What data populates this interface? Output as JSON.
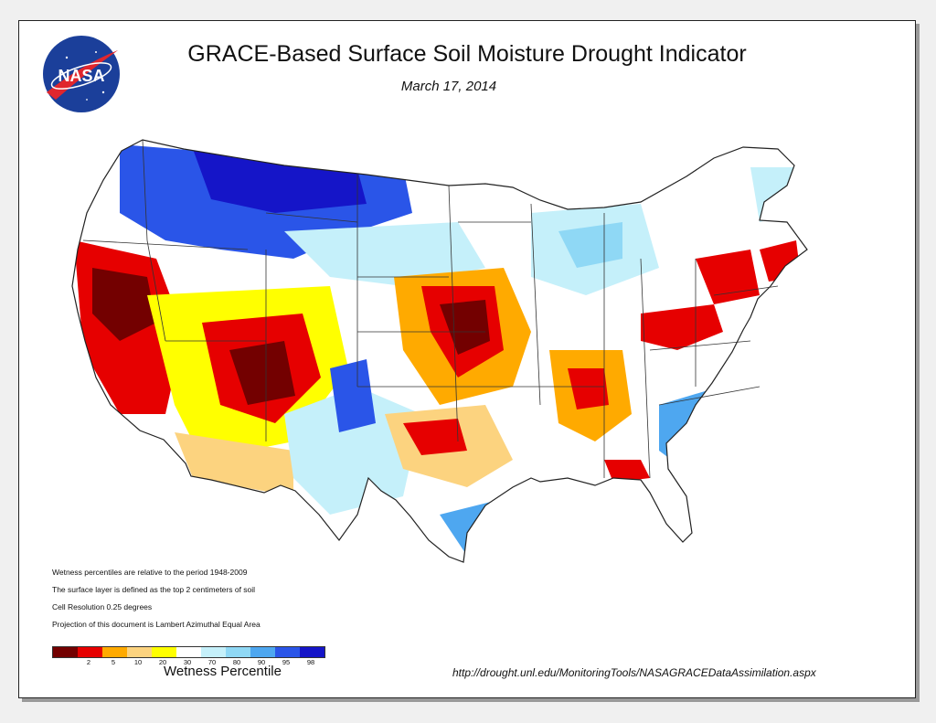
{
  "header": {
    "logo_text": "NASA",
    "title": "GRACE-Based Surface Soil  Moisture Drought Indicator",
    "date": "March 17, 2014"
  },
  "notes": [
    "Wetness percentiles are relative to the period 1948-2009",
    "The surface layer is defined as the top 2 centimeters of soil",
    "Cell Resolution 0.25 degrees",
    "Projection of this document is Lambert Azimuthal Equal Area"
  ],
  "legend": {
    "label": "Wetness Percentile",
    "colors": [
      "#730000",
      "#e60000",
      "#ffaa00",
      "#fcd37f",
      "#ffff00",
      "#ffffff",
      "#c5f0fa",
      "#8fd8f5",
      "#4ea7f0",
      "#2a55e8",
      "#1515c8"
    ],
    "ticks": [
      "2",
      "5",
      "10",
      "20",
      "30",
      "70",
      "80",
      "90",
      "95",
      "98"
    ]
  },
  "footer": {
    "source_url": "http://drought.unl.edu/MonitoringTools/NASAGRACEDataAssimilation.aspx"
  },
  "palette": {
    "dry_extreme": "#730000",
    "dry_severe": "#e60000",
    "dry_moderate": "#ffaa00",
    "dry_light": "#fcd37f",
    "dry_abnormal": "#ffff00",
    "normal": "#ffffff",
    "wet_light": "#c5f0fa",
    "wet_moderate": "#8fd8f5",
    "wet_severe": "#4ea7f0",
    "wet_extreme": "#2a55e8",
    "wet_exceptional": "#1515c8",
    "border": "#333333"
  }
}
